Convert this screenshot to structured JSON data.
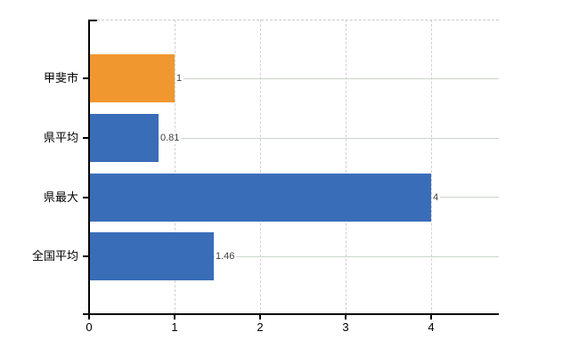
{
  "chart_data": {
    "type": "bar",
    "orientation": "horizontal",
    "title": "",
    "categories": [
      "甲斐市",
      "県平均",
      "県最大",
      "全国平均"
    ],
    "values": [
      1,
      0.81,
      4,
      1.46
    ],
    "value_labels": [
      "1",
      "0.81",
      "4",
      "1.46"
    ],
    "bar_colors": [
      "#f0982f",
      "#3a6db8",
      "#3a6db8",
      "#3a6db8"
    ],
    "x_tick_labels": [
      "0",
      "1",
      "2",
      "3",
      "4"
    ],
    "x_tick_values": [
      0,
      1,
      2,
      3,
      4
    ],
    "xlim": [
      0,
      4.79
    ],
    "grid": "on",
    "legend": "none",
    "colors": {
      "bar_highlight": "#f0982f",
      "bar_default": "#3a6db8",
      "axis": "#000000",
      "gridline_horizontal": "#ccd4cc",
      "gridline_vertical": "#d6ced6",
      "value_label_text": "#404040",
      "tick_label_text": "#000000",
      "background": "#ffffff"
    }
  }
}
